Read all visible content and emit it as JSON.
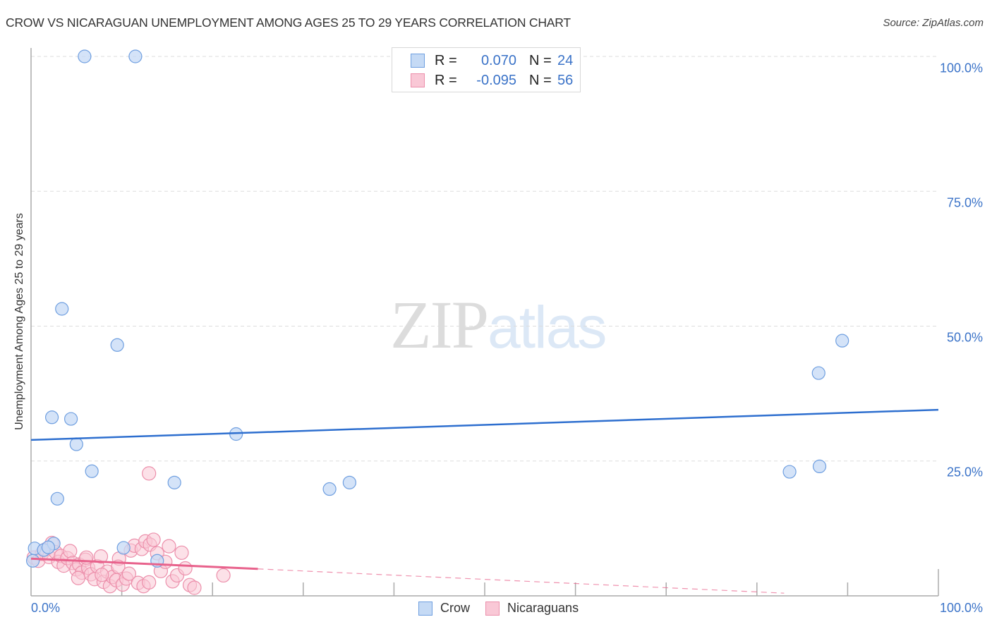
{
  "header": {
    "title": "CROW VS NICARAGUAN UNEMPLOYMENT AMONG AGES 25 TO 29 YEARS CORRELATION CHART",
    "source": "Source: ZipAtlas.com"
  },
  "watermark": {
    "zip": "ZIP",
    "atlas": "atlas"
  },
  "legend": {
    "rows": [
      {
        "series": "Crow",
        "r_label": "R =",
        "r_value": "0.070",
        "n_label": "N =",
        "n_value": "24"
      },
      {
        "series": "Nicaraguans",
        "r_label": "R =",
        "r_value": "-0.095",
        "n_label": "N =",
        "n_value": "56"
      }
    ]
  },
  "bottom_legend": {
    "items": [
      "Crow",
      "Nicaraguans"
    ]
  },
  "axes": {
    "ylabel": "Unemployment Among Ages 25 to 29 years",
    "yticks": [
      "100.0%",
      "75.0%",
      "50.0%",
      "25.0%"
    ],
    "xticks": [
      "0.0%",
      "100.0%"
    ]
  },
  "colors": {
    "crow_fill": "#c5daf5",
    "crow_stroke": "#6f9fe0",
    "crow_line": "#2e6fcf",
    "nic_fill": "#f9c8d6",
    "nic_stroke": "#ec8fab",
    "nic_line": "#e8628c",
    "tick_text": "#3b73c8",
    "grid": "#dddddd"
  },
  "chart_data": {
    "type": "scatter",
    "title": "CROW VS NICARAGUAN UNEMPLOYMENT AMONG AGES 25 TO 29 YEARS CORRELATION CHART",
    "xlabel": "",
    "ylabel": "Unemployment Among Ages 25 to 29 years",
    "xlim": [
      0,
      100
    ],
    "ylim": [
      0,
      100
    ],
    "grid": true,
    "legend_position": "top-center",
    "series": [
      {
        "name": "Crow",
        "R": 0.07,
        "N": 24,
        "trend": {
          "x": [
            0,
            100
          ],
          "y": [
            28.9,
            34.5
          ]
        },
        "points": [
          [
            5.9,
            100.0
          ],
          [
            11.5,
            100.0
          ],
          [
            3.4,
            53.2
          ],
          [
            9.5,
            46.5
          ],
          [
            89.4,
            47.3
          ],
          [
            86.8,
            41.3
          ],
          [
            2.3,
            33.1
          ],
          [
            4.4,
            32.8
          ],
          [
            22.6,
            30.0
          ],
          [
            5.0,
            28.1
          ],
          [
            6.7,
            23.1
          ],
          [
            15.8,
            21.0
          ],
          [
            32.9,
            19.8
          ],
          [
            35.1,
            21.0
          ],
          [
            83.6,
            23.0
          ],
          [
            86.9,
            24.0
          ],
          [
            2.9,
            18.0
          ],
          [
            0.4,
            8.8
          ],
          [
            1.4,
            8.5
          ],
          [
            2.5,
            9.7
          ],
          [
            1.9,
            9.0
          ],
          [
            10.2,
            8.9
          ],
          [
            13.9,
            6.5
          ],
          [
            0.2,
            6.5
          ]
        ]
      },
      {
        "name": "Nicaraguans",
        "R": -0.095,
        "N": 56,
        "trend": {
          "x": [
            0,
            25,
            83
          ],
          "y": [
            6.9,
            5.0,
            0.5
          ],
          "solid_until_x": 25
        },
        "points": [
          [
            0.3,
            7.1
          ],
          [
            0.8,
            6.5
          ],
          [
            1.2,
            7.8
          ],
          [
            1.6,
            8.6
          ],
          [
            2.0,
            7.2
          ],
          [
            2.3,
            9.8
          ],
          [
            2.7,
            8.1
          ],
          [
            3.0,
            6.3
          ],
          [
            3.3,
            7.4
          ],
          [
            3.6,
            5.6
          ],
          [
            4.0,
            7.0
          ],
          [
            4.3,
            8.3
          ],
          [
            4.6,
            6.1
          ],
          [
            5.0,
            4.9
          ],
          [
            5.3,
            5.8
          ],
          [
            5.6,
            4.3
          ],
          [
            6.0,
            6.7
          ],
          [
            6.3,
            5.2
          ],
          [
            6.6,
            4.0
          ],
          [
            7.0,
            3.1
          ],
          [
            7.3,
            5.5
          ],
          [
            7.7,
            7.3
          ],
          [
            8.0,
            2.6
          ],
          [
            8.4,
            4.5
          ],
          [
            8.7,
            1.8
          ],
          [
            9.0,
            3.5
          ],
          [
            9.4,
            2.9
          ],
          [
            9.7,
            6.9
          ],
          [
            10.1,
            2.1
          ],
          [
            10.5,
            3.2
          ],
          [
            11.0,
            8.4
          ],
          [
            11.4,
            9.3
          ],
          [
            11.8,
            2.4
          ],
          [
            12.2,
            8.7
          ],
          [
            12.6,
            10.1
          ],
          [
            13.1,
            9.5
          ],
          [
            13.5,
            10.4
          ],
          [
            13.9,
            7.9
          ],
          [
            14.3,
            4.6
          ],
          [
            14.8,
            6.3
          ],
          [
            15.2,
            9.2
          ],
          [
            15.6,
            2.7
          ],
          [
            16.1,
            3.8
          ],
          [
            16.6,
            8.0
          ],
          [
            17.0,
            5.1
          ],
          [
            17.5,
            2.0
          ],
          [
            18.0,
            1.5
          ],
          [
            21.2,
            3.8
          ],
          [
            12.4,
            1.8
          ],
          [
            13.0,
            2.5
          ],
          [
            7.8,
            3.9
          ],
          [
            6.1,
            7.1
          ],
          [
            5.2,
            3.3
          ],
          [
            9.6,
            5.4
          ],
          [
            10.8,
            4.1
          ],
          [
            13.0,
            22.7
          ]
        ]
      }
    ]
  }
}
